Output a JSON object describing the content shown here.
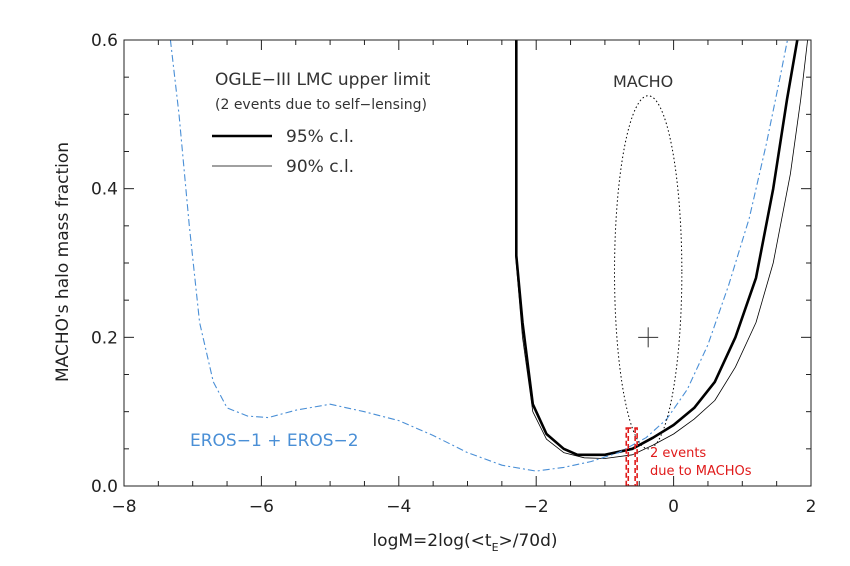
{
  "chart_data": {
    "type": "line",
    "xlabel": "logM=2log(<t",
    "xlabel_sub": "E",
    "xlabel_tail": ">/70d)",
    "ylabel": "MACHO's halo mass fraction",
    "xlim": [
      -8,
      2
    ],
    "ylim": [
      0,
      0.6
    ],
    "x_ticks": [
      -8,
      -6,
      -4,
      -2,
      0,
      2
    ],
    "x_tick_labels": [
      "−8",
      "−6",
      "−4",
      "−2",
      "0",
      "2"
    ],
    "y_ticks": [
      0.0,
      0.2,
      0.4,
      0.6
    ],
    "y_tick_labels": [
      "0.0",
      "0.2",
      "0.4",
      "0.6"
    ],
    "legend": {
      "title": "OGLE−III LMC upper limit",
      "subtitle": "(2 events due to self−lensing)",
      "entries": [
        "95% c.l.",
        "90% c.l."
      ]
    },
    "series": [
      {
        "name": "95% c.l.",
        "color": "#000000",
        "points": [
          [
            -2.29,
            0.62
          ],
          [
            -2.29,
            0.31
          ],
          [
            -2.2,
            0.22
          ],
          [
            -2.05,
            0.11
          ],
          [
            -1.85,
            0.07
          ],
          [
            -1.6,
            0.05
          ],
          [
            -1.4,
            0.042
          ],
          [
            -1.0,
            0.042
          ],
          [
            -0.6,
            0.05
          ],
          [
            -0.3,
            0.065
          ],
          [
            0.0,
            0.082
          ],
          [
            0.3,
            0.105
          ],
          [
            0.6,
            0.14
          ],
          [
            0.9,
            0.2
          ],
          [
            1.2,
            0.28
          ],
          [
            1.45,
            0.4
          ],
          [
            1.65,
            0.52
          ],
          [
            1.8,
            0.6
          ],
          [
            1.83,
            0.62
          ]
        ]
      },
      {
        "name": "90% c.l.",
        "color": "#000000",
        "points": [
          [
            -2.3,
            0.62
          ],
          [
            -2.3,
            0.31
          ],
          [
            -2.2,
            0.2
          ],
          [
            -2.05,
            0.1
          ],
          [
            -1.85,
            0.063
          ],
          [
            -1.6,
            0.045
          ],
          [
            -1.3,
            0.038
          ],
          [
            -1.0,
            0.037
          ],
          [
            -0.6,
            0.042
          ],
          [
            -0.3,
            0.055
          ],
          [
            0.0,
            0.07
          ],
          [
            0.3,
            0.09
          ],
          [
            0.6,
            0.115
          ],
          [
            0.9,
            0.16
          ],
          [
            1.2,
            0.22
          ],
          [
            1.45,
            0.3
          ],
          [
            1.7,
            0.42
          ],
          [
            1.85,
            0.52
          ],
          [
            1.95,
            0.6
          ],
          [
            1.98,
            0.62
          ]
        ]
      },
      {
        "name": "EROS−1 + EROS−2",
        "color": "#4a8fd6",
        "points": [
          [
            -7.35,
            0.62
          ],
          [
            -7.2,
            0.5
          ],
          [
            -7.05,
            0.35
          ],
          [
            -6.9,
            0.22
          ],
          [
            -6.7,
            0.14
          ],
          [
            -6.5,
            0.105
          ],
          [
            -6.2,
            0.094
          ],
          [
            -5.9,
            0.092
          ],
          [
            -5.5,
            0.102
          ],
          [
            -5.0,
            0.11
          ],
          [
            -4.5,
            0.1
          ],
          [
            -4.0,
            0.088
          ],
          [
            -3.5,
            0.068
          ],
          [
            -3.0,
            0.045
          ],
          [
            -2.5,
            0.028
          ],
          [
            -2.0,
            0.02
          ],
          [
            -1.6,
            0.025
          ],
          [
            -1.2,
            0.033
          ],
          [
            -0.8,
            0.045
          ],
          [
            -0.4,
            0.065
          ],
          [
            -0.1,
            0.09
          ],
          [
            0.2,
            0.13
          ],
          [
            0.5,
            0.19
          ],
          [
            0.8,
            0.27
          ],
          [
            1.1,
            0.36
          ],
          [
            1.35,
            0.46
          ],
          [
            1.55,
            0.55
          ],
          [
            1.7,
            0.62
          ]
        ]
      }
    ],
    "macho_contour": {
      "label": "MACHO",
      "center": [
        -0.37,
        0.2
      ],
      "x_radius": 0.98,
      "y_top": 0.525,
      "y_bottom": 0.05
    },
    "macho_point": [
      -0.37,
      0.2
    ],
    "eros_label": "EROS−1 + EROS−2",
    "events_label_line1": "2 events",
    "events_label_line2": "due to MACHOs",
    "events_x": [
      -0.66,
      -0.56
    ],
    "events_box_ylim": [
      0.0,
      0.078
    ],
    "colors": {
      "axis": "#222222",
      "eros": "#4a8fd6",
      "events": "#e01a1a"
    }
  }
}
